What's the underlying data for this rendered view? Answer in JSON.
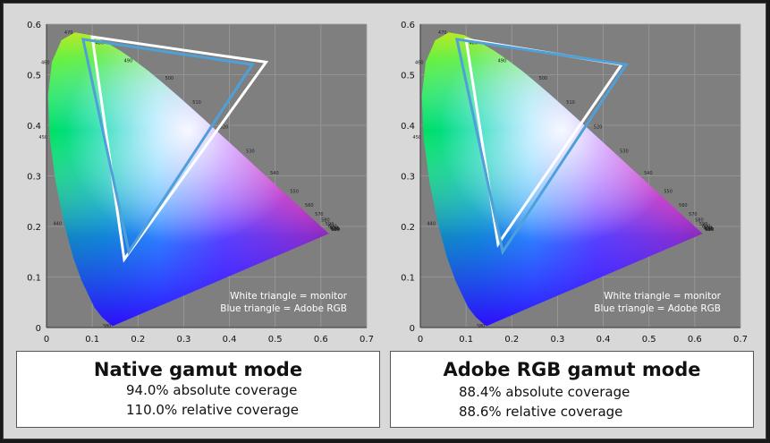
{
  "chart_data": [
    {
      "type": "scatter",
      "title": "Native gamut mode",
      "xlim": [
        0,
        0.7
      ],
      "ylim": [
        0,
        0.6
      ],
      "x_ticks": [
        "0",
        "0.1",
        "0.2",
        "0.3",
        "0.4",
        "0.5",
        "0.6",
        "0.7"
      ],
      "y_ticks": [
        "0",
        "0.1",
        "0.2",
        "0.3",
        "0.4",
        "0.5",
        "0.6"
      ],
      "grid": true,
      "wavelength_labels": [
        "380",
        "440",
        "450",
        "460",
        "470",
        "480",
        "490",
        "500",
        "510",
        "520",
        "530",
        "540",
        "550",
        "560",
        "570",
        "580",
        "590",
        "600",
        "610",
        "620",
        "630",
        "640",
        "680"
      ],
      "series": [
        {
          "name": "White triangle = monitor",
          "color": "#ffffff",
          "x": [
            0.48,
            0.1,
            0.17
          ],
          "y": [
            0.525,
            0.575,
            0.135
          ]
        },
        {
          "name": "Blue triangle = Adobe RGB",
          "color": "#4fa0d8",
          "x": [
            0.45,
            0.08,
            0.18
          ],
          "y": [
            0.52,
            0.57,
            0.15
          ]
        }
      ],
      "coverage": {
        "absolute": "94.0% absolute coverage",
        "relative": "110.0% relative coverage"
      }
    },
    {
      "type": "scatter",
      "title": "Adobe RGB gamut mode",
      "xlim": [
        0,
        0.7
      ],
      "ylim": [
        0,
        0.6
      ],
      "x_ticks": [
        "0",
        "0.1",
        "0.2",
        "0.3",
        "0.4",
        "0.5",
        "0.6",
        "0.7"
      ],
      "y_ticks": [
        "0",
        "0.1",
        "0.2",
        "0.3",
        "0.4",
        "0.5",
        "0.6"
      ],
      "grid": true,
      "wavelength_labels": [
        "380",
        "440",
        "450",
        "460",
        "470",
        "480",
        "490",
        "500",
        "510",
        "520",
        "530",
        "540",
        "550",
        "560",
        "570",
        "580",
        "590",
        "600",
        "610",
        "620",
        "630",
        "640",
        "680"
      ],
      "series": [
        {
          "name": "White triangle = monitor",
          "color": "#ffffff",
          "x": [
            0.44,
            0.1,
            0.17
          ],
          "y": [
            0.52,
            0.57,
            0.165
          ]
        },
        {
          "name": "Blue triangle = Adobe RGB",
          "color": "#4fa0d8",
          "x": [
            0.45,
            0.08,
            0.18
          ],
          "y": [
            0.52,
            0.57,
            0.15
          ]
        }
      ],
      "coverage": {
        "absolute": "88.4% absolute coverage",
        "relative": "88.6% relative coverage"
      }
    }
  ],
  "legend": {
    "white": "White triangle = monitor",
    "blue": "Blue triangle = Adobe RGB"
  },
  "captions": [
    {
      "title": "Native gamut mode",
      "absolute": "94.0% absolute coverage",
      "relative": "110.0% relative coverage"
    },
    {
      "title": "Adobe RGB gamut mode",
      "absolute": "88.4% absolute coverage",
      "relative": "88.6% relative coverage"
    }
  ]
}
